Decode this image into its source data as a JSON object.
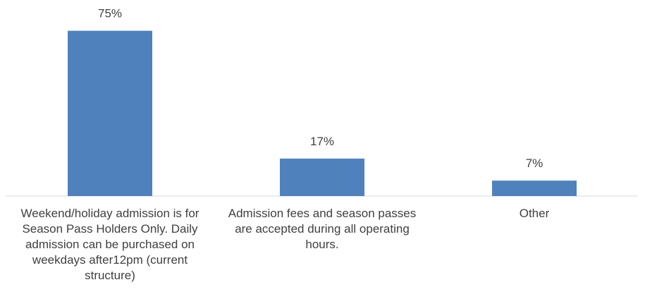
{
  "chart_data": {
    "type": "bar",
    "categories": [
      "Weekend/holiday admission is for Season Pass Holders Only. Daily admission can be purchased on weekdays after12pm (current structure)",
      "Admission fees and season passes are accepted during all operating hours.",
      "Other"
    ],
    "values": [
      75,
      17,
      7
    ],
    "data_labels": [
      "75%",
      "17%",
      "7%"
    ],
    "title": "",
    "xlabel": "",
    "ylabel": "",
    "ylim": [
      0,
      80
    ],
    "grid": false,
    "legend": "none",
    "bar_color": "#4f81bd",
    "axis_color": "#d9d9d9"
  }
}
